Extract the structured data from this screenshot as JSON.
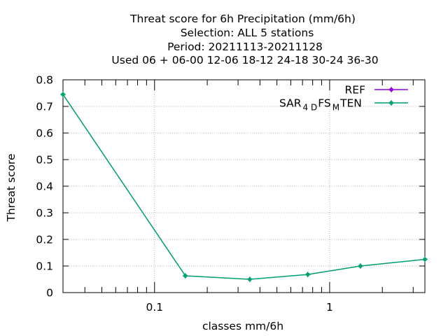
{
  "chart_data": {
    "type": "line",
    "title_lines": [
      "Threat score  for 6h Precipitation (mm/6h)",
      "Selection: ALL      5 stations",
      "Period: 20211113-20211128",
      "Used  06 + 06-00 12-06 18-12 24-18 30-24 36-30"
    ],
    "xlabel": "classes mm/6h",
    "ylabel": "Threat score",
    "xscale": "log",
    "xlim": [
      0.03,
      3.5
    ],
    "ylim": [
      0,
      0.8
    ],
    "yticks": [
      "0",
      "0.1",
      "0.2",
      "0.3",
      "0.4",
      "0.5",
      "0.6",
      "0.7",
      "0.8"
    ],
    "xticks": [
      "0.1",
      "1"
    ],
    "grid": true,
    "legend_position": "top-right",
    "series": [
      {
        "name": "REF",
        "color": "#9400d3",
        "x": [],
        "y": []
      },
      {
        "name_parts": [
          "SAR",
          "4 D",
          "FS",
          "M",
          "TEN"
        ],
        "color": "#009e73",
        "x": [
          0.03,
          0.15,
          0.35,
          0.75,
          1.5,
          3.5
        ],
        "y": [
          0.745,
          0.063,
          0.05,
          0.068,
          0.1,
          0.125
        ]
      }
    ]
  }
}
